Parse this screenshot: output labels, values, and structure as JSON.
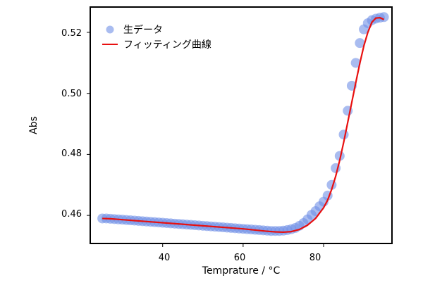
{
  "chart_data": {
    "type": "scatter",
    "title": "",
    "xlabel": "Temprature / °C",
    "ylabel": "Abs",
    "xlim": [
      22,
      97
    ],
    "ylim": [
      0.4508,
      0.5283
    ],
    "xticks": [
      40,
      60,
      80
    ],
    "yticks": [
      0.46,
      0.48,
      0.5,
      0.52
    ],
    "xtick_labels": [
      "40",
      "60",
      "80"
    ],
    "ytick_labels": [
      "0.46",
      "0.48",
      "0.50",
      "0.52"
    ],
    "grid": false,
    "legend_position": "top-left",
    "series": [
      {
        "name": "生データ",
        "kind": "scatter",
        "color": "#6f8fe6",
        "x": [
          25,
          26,
          27,
          28,
          29,
          30,
          31,
          32,
          33,
          34,
          35,
          36,
          37,
          38,
          39,
          40,
          41,
          42,
          43,
          44,
          45,
          46,
          47,
          48,
          49,
          50,
          51,
          52,
          53,
          54,
          55,
          56,
          57,
          58,
          59,
          60,
          61,
          62,
          63,
          64,
          65,
          66,
          67,
          68,
          69,
          70,
          71,
          72,
          73,
          74,
          75,
          76,
          77,
          78,
          79,
          80,
          81,
          82,
          83,
          84,
          85,
          86,
          87,
          88,
          89,
          90,
          91,
          92,
          93,
          94,
          95
        ],
        "y": [
          0.459,
          0.459,
          0.4589,
          0.4588,
          0.4587,
          0.4586,
          0.4585,
          0.4584,
          0.4583,
          0.4582,
          0.4581,
          0.458,
          0.4579,
          0.4578,
          0.4577,
          0.4576,
          0.4575,
          0.4574,
          0.4573,
          0.4572,
          0.4571,
          0.457,
          0.4569,
          0.4568,
          0.4567,
          0.4566,
          0.4565,
          0.4564,
          0.4563,
          0.4562,
          0.4561,
          0.456,
          0.4559,
          0.4558,
          0.4557,
          0.4556,
          0.4555,
          0.4554,
          0.4553,
          0.4552,
          0.4551,
          0.455,
          0.4549,
          0.4549,
          0.4549,
          0.455,
          0.4552,
          0.4555,
          0.4559,
          0.4566,
          0.4575,
          0.4587,
          0.4602,
          0.4614,
          0.463,
          0.4645,
          0.4665,
          0.47,
          0.4755,
          0.4795,
          0.4865,
          0.4943,
          0.5025,
          0.51,
          0.5165,
          0.521,
          0.523,
          0.524,
          0.5245,
          0.5248,
          0.525
        ]
      },
      {
        "name": "フィッティング曲線",
        "kind": "line",
        "color": "#e81010",
        "x": [
          25,
          27,
          30,
          33,
          36,
          40,
          44,
          48,
          52,
          56,
          60,
          63,
          66,
          68,
          70,
          72,
          74,
          76,
          78,
          80,
          81,
          82,
          83,
          84,
          85,
          86,
          87,
          88,
          89,
          90,
          91,
          92,
          93,
          94,
          95
        ],
        "y": [
          0.459,
          0.4589,
          0.4586,
          0.4583,
          0.458,
          0.4576,
          0.4572,
          0.4568,
          0.4564,
          0.456,
          0.4556,
          0.4552,
          0.4548,
          0.4546,
          0.4545,
          0.4547,
          0.4554,
          0.4568,
          0.459,
          0.4625,
          0.465,
          0.4685,
          0.4728,
          0.478,
          0.484,
          0.4905,
          0.497,
          0.5035,
          0.5098,
          0.5155,
          0.52,
          0.5233,
          0.5247,
          0.5248,
          0.5242
        ]
      }
    ]
  }
}
